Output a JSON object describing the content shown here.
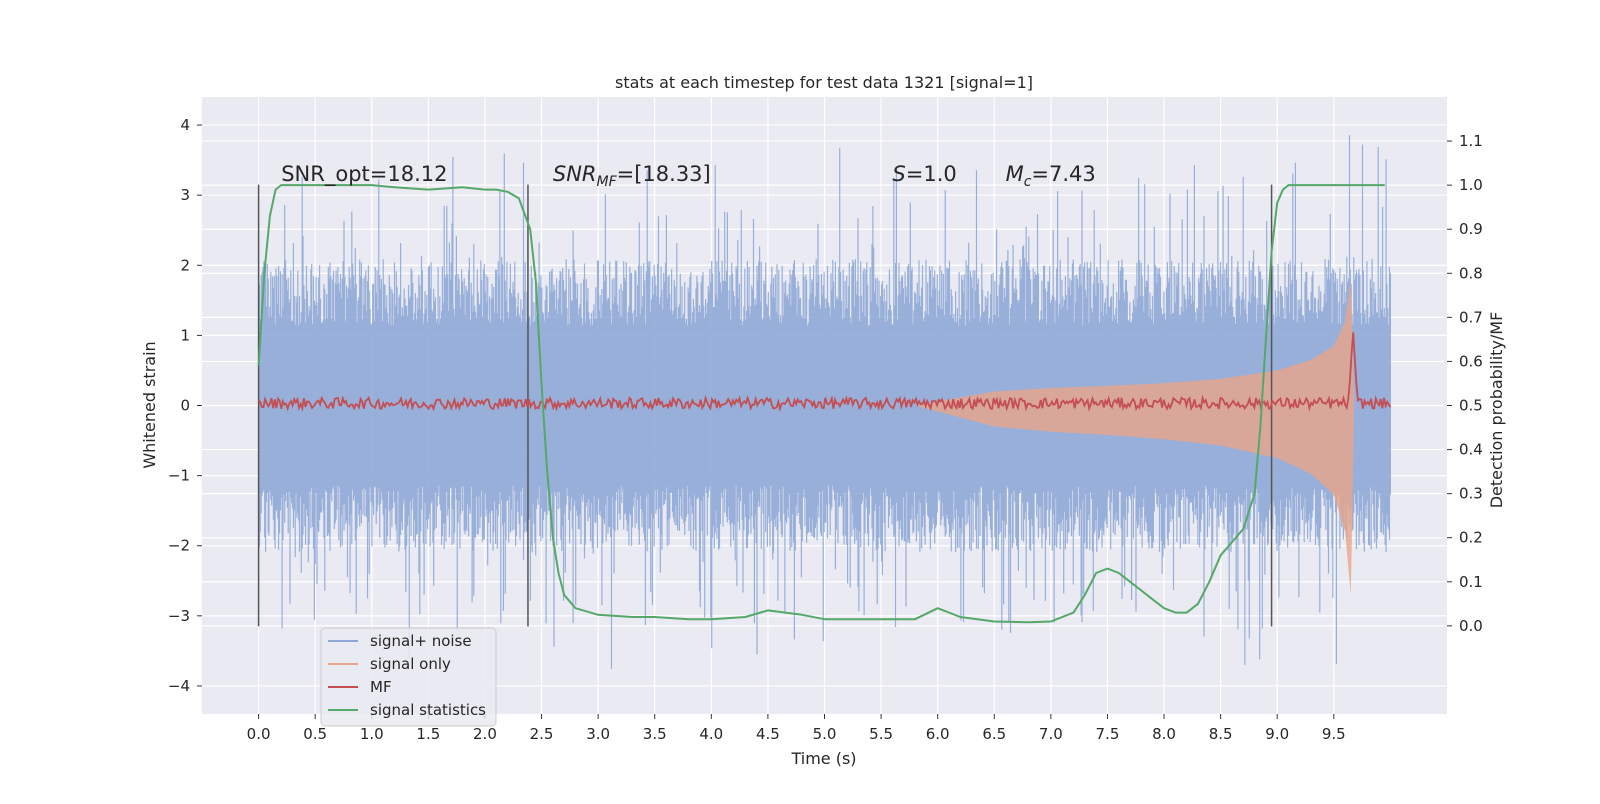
{
  "chart_data": {
    "type": "line",
    "title": "stats at each timestep for test data 1321 [signal=1]",
    "xlabel": "Time (s)",
    "ylabel_left": "Whitened strain",
    "ylabel_right": "Detection probability/MF",
    "xlim": [
      -0.5,
      10.5
    ],
    "ylim_left": [
      -4.4,
      4.4
    ],
    "ylim_right": [
      -0.2,
      1.2
    ],
    "x_ticks": [
      "0.0",
      "0.5",
      "1.0",
      "1.5",
      "2.0",
      "2.5",
      "3.0",
      "3.5",
      "4.0",
      "4.5",
      "5.0",
      "5.5",
      "6.0",
      "6.5",
      "7.0",
      "7.5",
      "8.0",
      "8.5",
      "9.0",
      "9.5"
    ],
    "x_tick_values": [
      0.0,
      0.5,
      1.0,
      1.5,
      2.0,
      2.5,
      3.0,
      3.5,
      4.0,
      4.5,
      5.0,
      5.5,
      6.0,
      6.5,
      7.0,
      7.5,
      8.0,
      8.5,
      9.0,
      9.5
    ],
    "y_left_ticks": [
      "4",
      "3",
      "2",
      "1",
      "0",
      "−1",
      "−2",
      "−3",
      "−4"
    ],
    "y_left_tick_values": [
      4,
      3,
      2,
      1,
      0,
      -1,
      -2,
      -3,
      -4
    ],
    "y_right_ticks": [
      "1.1",
      "1.0",
      "0.9",
      "0.8",
      "0.7",
      "0.6",
      "0.5",
      "0.4",
      "0.3",
      "0.2",
      "0.1",
      "0.0"
    ],
    "y_right_tick_values": [
      1.1,
      1.0,
      0.9,
      0.8,
      0.7,
      0.6,
      0.5,
      0.4,
      0.3,
      0.2,
      0.1,
      0.0
    ],
    "grid": true,
    "legend_placement": "lower-left",
    "annotations": [
      {
        "text": "SNR_opt=18.12",
        "x": 0.2,
        "y": 3.2
      },
      {
        "text": "SNRMF=[18.33]",
        "x": 2.6,
        "y": 3.2,
        "math": true,
        "base": "SNR",
        "sub": "MF",
        "rest": "=[18.33]"
      },
      {
        "text": "S=1.0",
        "x": 5.6,
        "y": 3.2,
        "math": true,
        "base": "S",
        "sub": "",
        "rest": "=1.0"
      },
      {
        "text": "Mc=7.43",
        "x": 6.6,
        "y": 3.2,
        "math": true,
        "base": "M",
        "sub": "c",
        "rest": "=7.43"
      }
    ],
    "vlines": [
      {
        "x": 0.0,
        "ymin": -3.15,
        "ymax": 3.15
      },
      {
        "x": 2.38,
        "ymin": -3.15,
        "ymax": 3.15
      },
      {
        "x": 8.95,
        "ymin": -3.15,
        "ymax": 3.15
      }
    ],
    "series": [
      {
        "name": "signal+ noise",
        "color": "#8fa8d6",
        "axis": "left",
        "x_range": [
          0,
          10
        ],
        "envelope_typical": 1.9,
        "envelope_peak": 3.8,
        "min": -3.8,
        "max": 4.0
      },
      {
        "name": "signal only",
        "color": "#e8a58a",
        "axis": "left",
        "envelope": {
          "x": [
            5.8,
            6.5,
            7.0,
            7.5,
            8.0,
            8.5,
            9.0,
            9.3,
            9.5,
            9.6,
            9.65,
            9.68
          ],
          "y": [
            0.0,
            0.2,
            0.25,
            0.28,
            0.32,
            0.38,
            0.5,
            0.65,
            0.85,
            1.2,
            1.8,
            0.0
          ]
        }
      },
      {
        "name": "MF",
        "color": "#c44e52",
        "axis": "right",
        "baseline": 0.505,
        "peak": {
          "x": 9.67,
          "y": 0.67
        }
      },
      {
        "name": "signal statistics",
        "color": "#55a868",
        "axis": "right",
        "x": [
          0.0,
          0.05,
          0.1,
          0.15,
          0.2,
          0.3,
          0.5,
          0.8,
          1.0,
          1.2,
          1.5,
          1.8,
          2.0,
          2.1,
          2.2,
          2.3,
          2.4,
          2.45,
          2.5,
          2.55,
          2.6,
          2.65,
          2.7,
          2.8,
          3.0,
          3.3,
          3.5,
          3.8,
          4.0,
          4.3,
          4.5,
          4.8,
          5.0,
          5.3,
          5.5,
          5.8,
          6.0,
          6.2,
          6.5,
          6.8,
          7.0,
          7.2,
          7.3,
          7.4,
          7.5,
          7.6,
          7.8,
          8.0,
          8.1,
          8.2,
          8.3,
          8.4,
          8.5,
          8.6,
          8.7,
          8.8,
          8.85,
          8.9,
          8.95,
          9.0,
          9.05,
          9.1,
          9.2,
          9.4,
          9.6,
          9.8,
          9.95
        ],
        "y": [
          0.59,
          0.8,
          0.93,
          0.99,
          1.0,
          1.0,
          1.0,
          1.0,
          1.0,
          0.995,
          0.99,
          0.995,
          0.99,
          0.99,
          0.985,
          0.97,
          0.9,
          0.78,
          0.55,
          0.35,
          0.2,
          0.12,
          0.07,
          0.04,
          0.025,
          0.02,
          0.02,
          0.015,
          0.015,
          0.02,
          0.035,
          0.025,
          0.015,
          0.015,
          0.015,
          0.015,
          0.04,
          0.02,
          0.01,
          0.008,
          0.01,
          0.03,
          0.07,
          0.12,
          0.13,
          0.12,
          0.08,
          0.04,
          0.03,
          0.03,
          0.05,
          0.1,
          0.16,
          0.19,
          0.22,
          0.3,
          0.45,
          0.65,
          0.85,
          0.96,
          0.99,
          1.0,
          1.0,
          1.0,
          1.0,
          1.0,
          1.0
        ]
      }
    ]
  }
}
